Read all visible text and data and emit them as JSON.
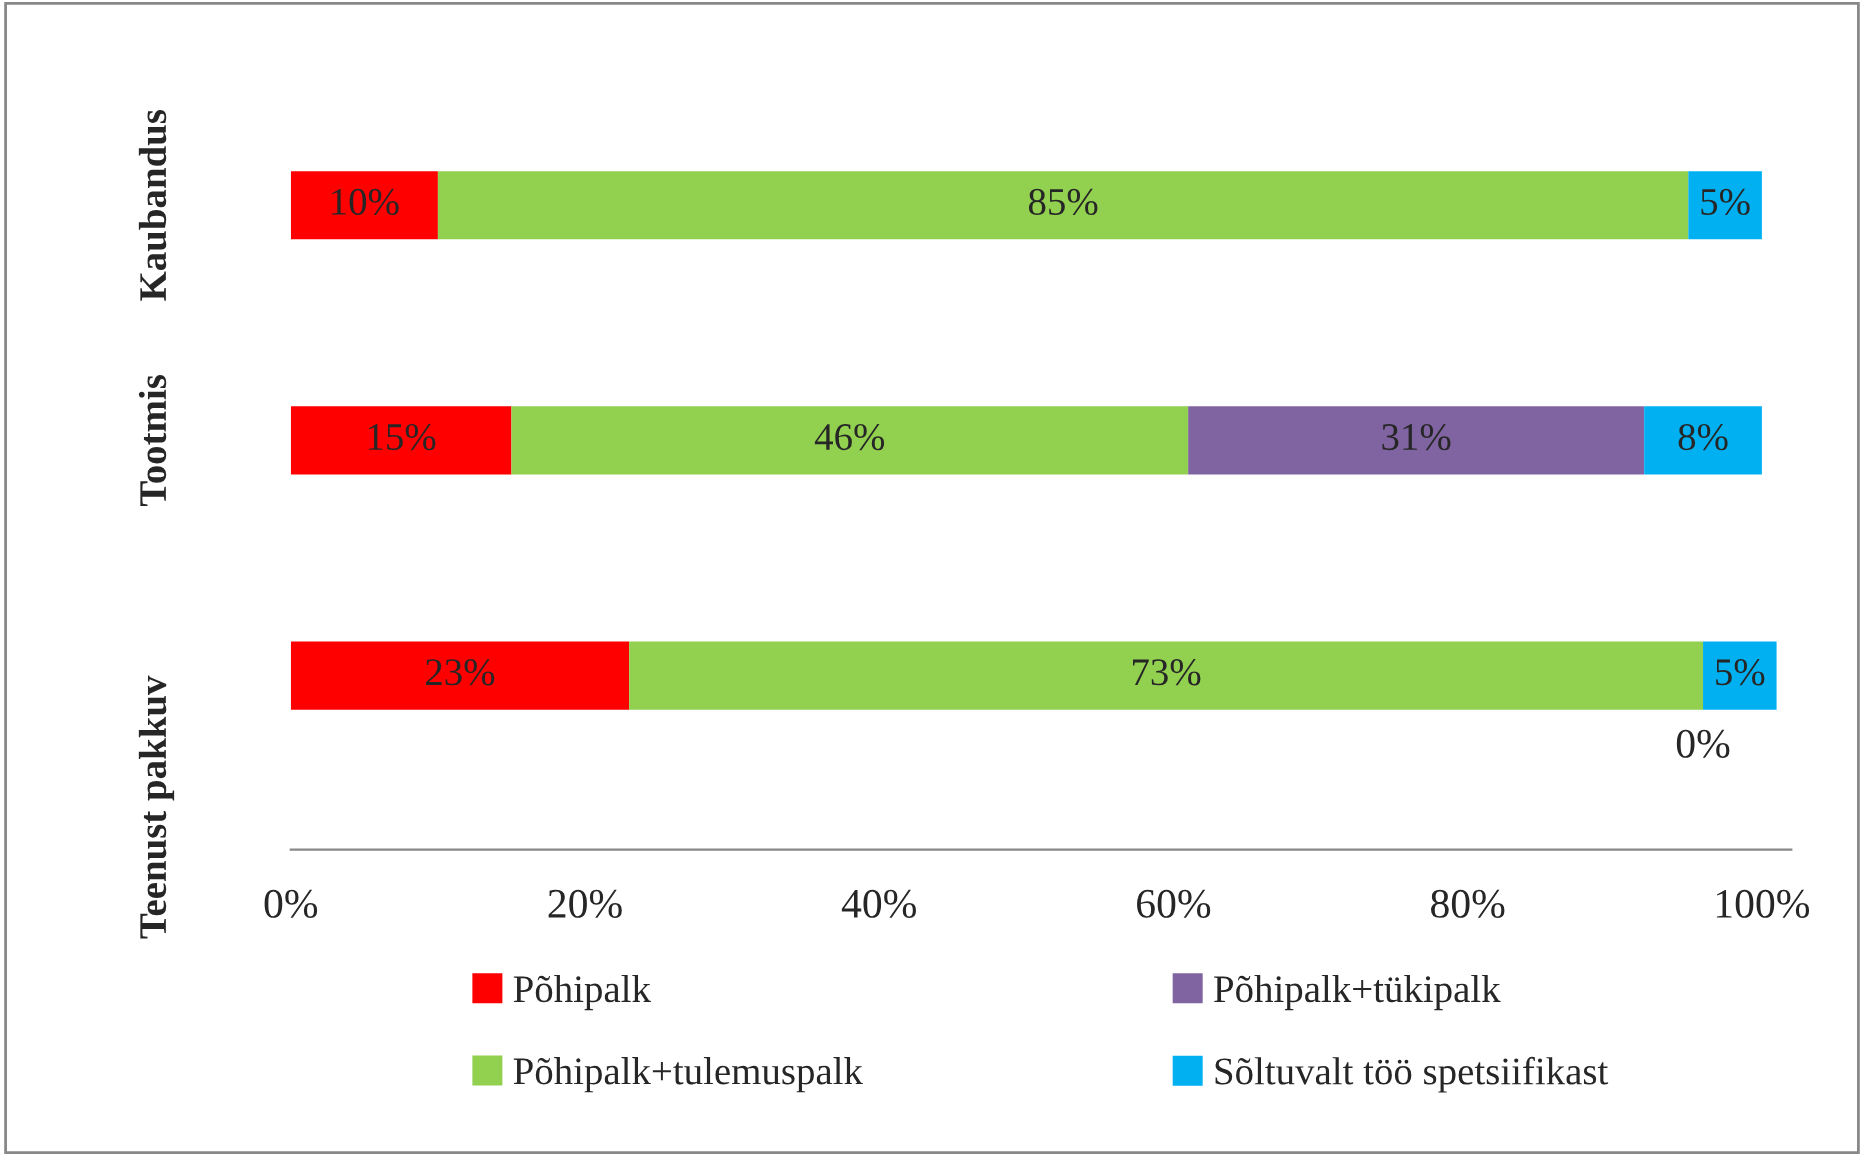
{
  "chart_data": {
    "type": "bar",
    "orientation": "horizontal",
    "stacked": true,
    "categories": [
      "Kaubandus",
      "Tootmis",
      "Teenust pakkuv"
    ],
    "series": [
      {
        "name": "Põhipalk",
        "color": "#ff0000",
        "values": [
          10,
          15,
          23
        ],
        "value_labels": [
          "10%",
          "15%",
          "23%"
        ]
      },
      {
        "name": "Põhipalk+tulemuspalk",
        "color": "#92d050",
        "values": [
          85,
          46,
          73
        ],
        "value_labels": [
          "85%",
          "46%",
          "73%"
        ]
      },
      {
        "name": "Põhipalk+tükipalk",
        "color": "#8064a2",
        "values": [
          0,
          31,
          0
        ],
        "value_labels": [
          null,
          "31%",
          "0%"
        ]
      },
      {
        "name": "Sõltuvalt töö spetsiifikast",
        "color": "#00b0f0",
        "values": [
          5,
          8,
          5
        ],
        "value_labels": [
          "5%",
          "8%",
          "5%"
        ]
      }
    ],
    "xlim": [
      0,
      102
    ],
    "xticks": [
      {
        "value": 0,
        "label": "0%"
      },
      {
        "value": 20,
        "label": "20%"
      },
      {
        "value": 40,
        "label": "40%"
      },
      {
        "value": 60,
        "label": "60%"
      },
      {
        "value": 80,
        "label": "80%"
      },
      {
        "value": 100,
        "label": "100%"
      }
    ],
    "grid": false,
    "legend": "bottom"
  }
}
